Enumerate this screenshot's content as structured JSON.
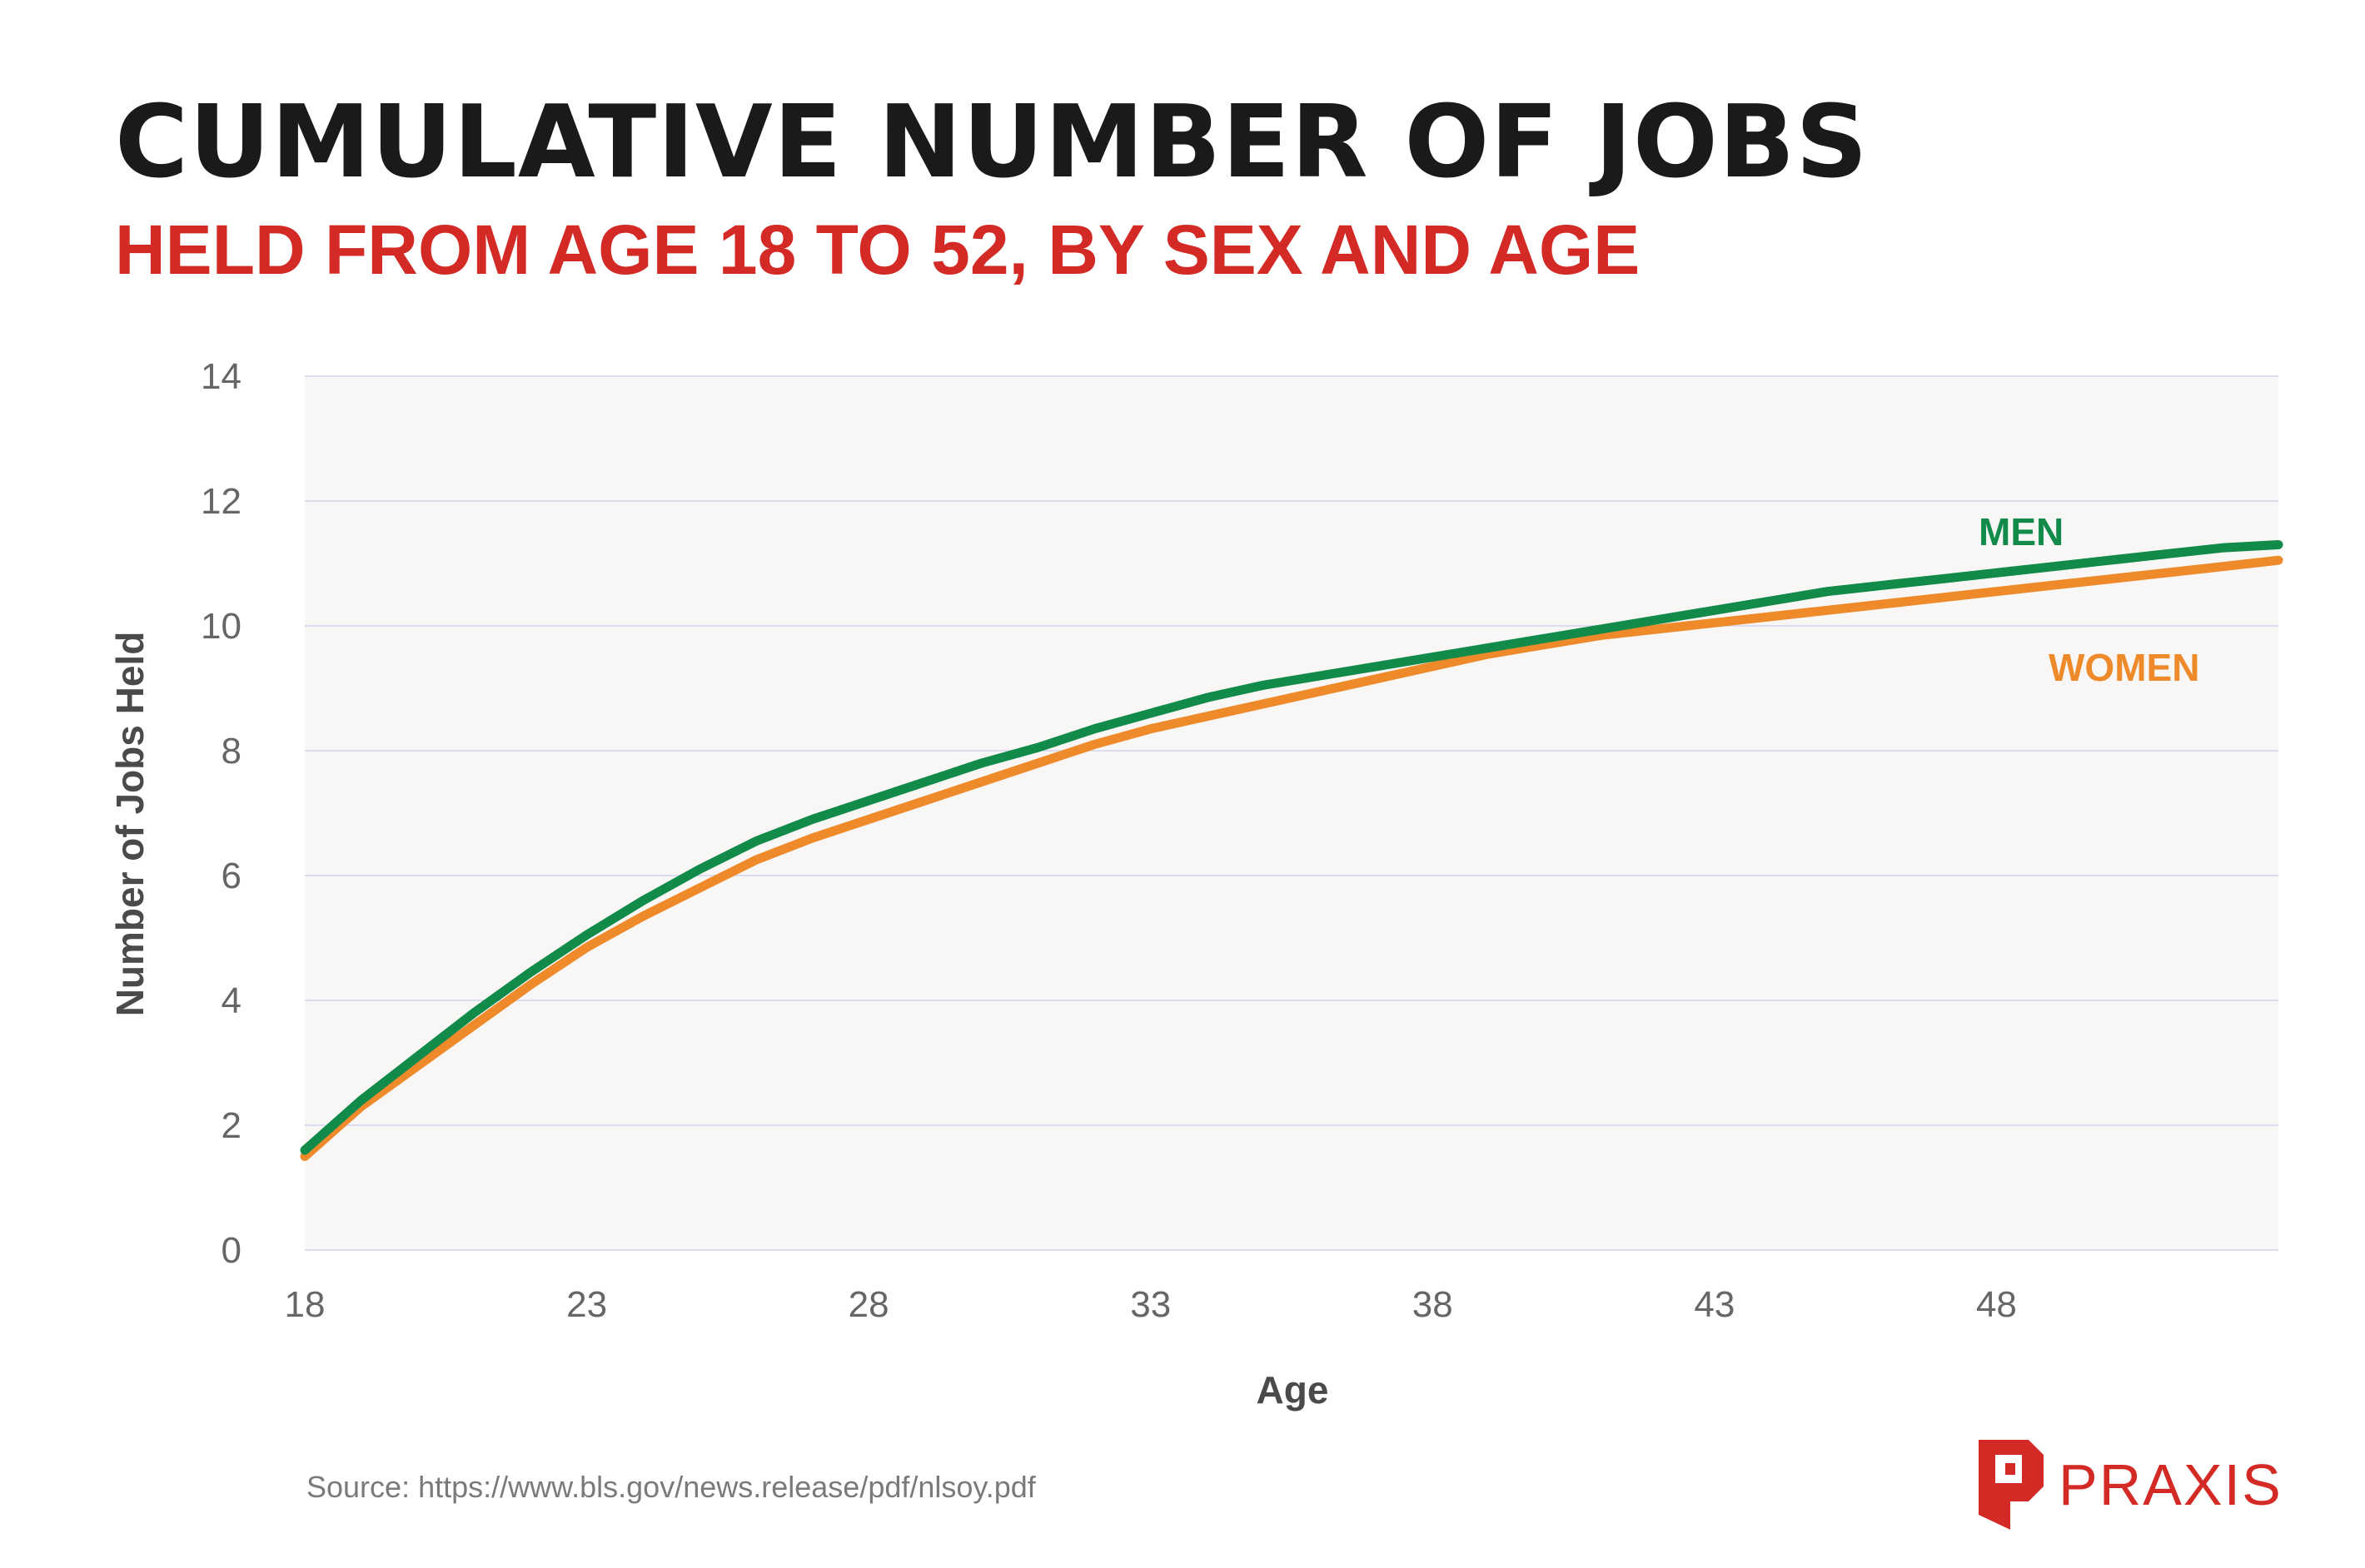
{
  "header": {
    "title": "CUMULATIVE NUMBER OF JOBS",
    "subtitle": "HELD FROM AGE 18 TO 52, BY SEX AND AGE"
  },
  "footer": {
    "source": "Source: https://www.bls.gov/news.release/pdf/nlsoy.pdf",
    "brand": "PRAXIS",
    "brand_icon": "praxis-logo-icon"
  },
  "colors": {
    "men": "#128a4a",
    "women": "#ef8a2b",
    "title": "#1a1a1a",
    "subtitle": "#d42a26",
    "plot_background": "#f8f7f6",
    "gridline": "#dcdcf0"
  },
  "chart_data": {
    "type": "line",
    "title": "CUMULATIVE NUMBER OF JOBS",
    "subtitle": "HELD FROM AGE 18 TO 52, BY SEX AND AGE",
    "xlabel": "Age",
    "ylabel": "Number of Jobs Held",
    "xlim": [
      18,
      53
    ],
    "ylim": [
      0,
      14
    ],
    "xticks": [
      18,
      23,
      28,
      33,
      38,
      43,
      48
    ],
    "yticks": [
      0,
      2,
      4,
      6,
      8,
      10,
      12,
      14
    ],
    "grid": "horizontal",
    "legend": "inline labels near line ends",
    "series": [
      {
        "name": "MEN",
        "color": "#128a4a",
        "x": [
          18,
          19,
          20,
          21,
          22,
          23,
          24,
          25,
          26,
          27,
          28,
          29,
          30,
          31,
          32,
          33,
          34,
          35,
          36,
          37,
          38,
          39,
          40,
          41,
          42,
          43,
          44,
          45,
          46,
          47,
          48,
          49,
          50,
          51,
          52,
          53
        ],
        "y": [
          1.6,
          2.4,
          3.1,
          3.8,
          4.45,
          5.05,
          5.6,
          6.1,
          6.55,
          6.9,
          7.2,
          7.5,
          7.8,
          8.05,
          8.35,
          8.6,
          8.85,
          9.05,
          9.2,
          9.35,
          9.5,
          9.65,
          9.8,
          9.95,
          10.1,
          10.25,
          10.4,
          10.55,
          10.65,
          10.75,
          10.85,
          10.95,
          11.05,
          11.15,
          11.25,
          11.3
        ]
      },
      {
        "name": "WOMEN",
        "color": "#ef8a2b",
        "x": [
          18,
          19,
          20,
          21,
          22,
          23,
          24,
          25,
          26,
          27,
          28,
          29,
          30,
          31,
          32,
          33,
          34,
          35,
          36,
          37,
          38,
          39,
          40,
          41,
          42,
          43,
          44,
          45,
          46,
          47,
          48,
          49,
          50,
          51,
          52,
          53
        ],
        "y": [
          1.5,
          2.3,
          2.95,
          3.6,
          4.25,
          4.85,
          5.35,
          5.8,
          6.25,
          6.6,
          6.9,
          7.2,
          7.5,
          7.8,
          8.1,
          8.35,
          8.55,
          8.75,
          8.95,
          9.15,
          9.35,
          9.55,
          9.7,
          9.85,
          9.95,
          10.05,
          10.15,
          10.25,
          10.35,
          10.45,
          10.55,
          10.65,
          10.75,
          10.85,
          10.95,
          11.05
        ]
      }
    ]
  }
}
